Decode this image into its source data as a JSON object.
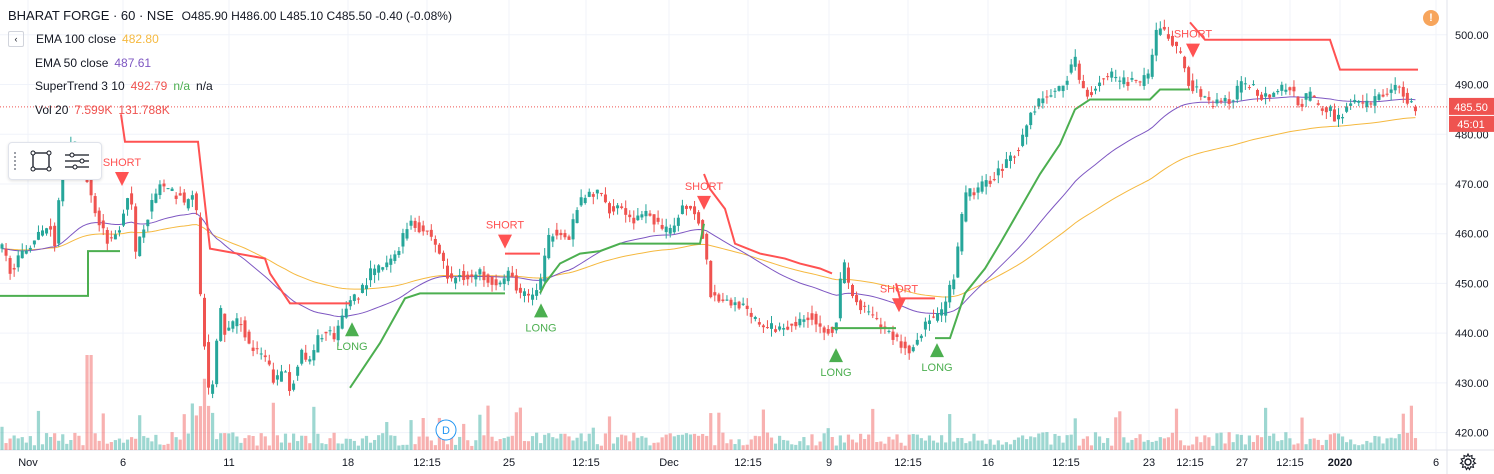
{
  "header": {
    "symbol_line": "BHARAT FORGE · 60 · NSE",
    "o_label": "O",
    "o_value": "485.90",
    "h_label": "H",
    "h_value": "486.00",
    "l_label": "L",
    "l_value": "485.10",
    "c_label": "C",
    "c_value": "485.50",
    "change": "-0.40 (-0.08%)",
    "collapse_glyph": "‹"
  },
  "indicators": [
    {
      "name": "EMA 100 close",
      "values": [
        "482.80"
      ],
      "color": "#f5b940"
    },
    {
      "name": "EMA 50 close",
      "values": [
        "487.61"
      ],
      "color": "#7e57c2"
    },
    {
      "name": "SuperTrend 3 10",
      "values": [
        "492.79",
        "n/a",
        "n/a"
      ],
      "color": "#ef5350"
    },
    {
      "name": "Vol 20",
      "values": [
        "7.599K",
        "131.788K"
      ],
      "color": "#ef5350"
    }
  ],
  "alert_glyph": "!",
  "colors": {
    "up": "#26a69a",
    "down": "#ef5350",
    "supertrend_up": "#4caf50",
    "supertrend_down": "#ff5252",
    "ema100": "#f5b940",
    "ema50": "#7e57c2",
    "grid": "#f0f3fa",
    "axis_text": "#131722",
    "price_tag": "#ef5350"
  },
  "chart_data": {
    "type": "candlestick",
    "x_tick_labels": [
      "Nov",
      "6",
      "11",
      "18",
      "12:15",
      "25",
      "12:15",
      "Dec",
      "12:15",
      "9",
      "12:15",
      "16",
      "12:15",
      "23",
      "12:15",
      "27",
      "12:15",
      "2020",
      "6"
    ],
    "y_ticks": [
      "420.00",
      "430.00",
      "440.00",
      "450.00",
      "460.00",
      "470.00",
      "480.00",
      "490.00",
      "500.00"
    ],
    "ylim": [
      416.5,
      507
    ],
    "last_price": "485.50",
    "countdown": "45:01",
    "scale_badge": "D",
    "anchors": [
      [
        0,
        458
      ],
      [
        10,
        453
      ],
      [
        20,
        455
      ],
      [
        30,
        458
      ],
      [
        40,
        460
      ],
      [
        50,
        462
      ],
      [
        55,
        458
      ],
      [
        60,
        470
      ],
      [
        70,
        478
      ],
      [
        80,
        477
      ],
      [
        85,
        472
      ],
      [
        90,
        468
      ],
      [
        100,
        462
      ],
      [
        110,
        458
      ],
      [
        120,
        462
      ],
      [
        130,
        470
      ],
      [
        135,
        455
      ],
      [
        140,
        460
      ],
      [
        150,
        465
      ],
      [
        160,
        470
      ],
      [
        170,
        468
      ],
      [
        180,
        468
      ],
      [
        185,
        465
      ],
      [
        195,
        470
      ],
      [
        200,
        448
      ],
      [
        210,
        425
      ],
      [
        220,
        445
      ],
      [
        225,
        440
      ],
      [
        240,
        443
      ],
      [
        250,
        437
      ],
      [
        265,
        435
      ],
      [
        275,
        430
      ],
      [
        285,
        433
      ],
      [
        290,
        428
      ],
      [
        300,
        436
      ],
      [
        310,
        434
      ],
      [
        320,
        440
      ],
      [
        330,
        440
      ],
      [
        335,
        438
      ],
      [
        340,
        442
      ],
      [
        350,
        447
      ],
      [
        360,
        448
      ],
      [
        370,
        452
      ],
      [
        380,
        453
      ],
      [
        390,
        454
      ],
      [
        400,
        458
      ],
      [
        410,
        463
      ],
      [
        420,
        461
      ],
      [
        430,
        460
      ],
      [
        440,
        456
      ],
      [
        450,
        450
      ],
      [
        460,
        452
      ],
      [
        470,
        451
      ],
      [
        480,
        452
      ],
      [
        490,
        451
      ],
      [
        500,
        450
      ],
      [
        510,
        452
      ],
      [
        520,
        448
      ],
      [
        530,
        447
      ],
      [
        540,
        450
      ],
      [
        550,
        460
      ],
      [
        560,
        461
      ],
      [
        570,
        458
      ],
      [
        575,
        465
      ],
      [
        590,
        468
      ],
      [
        600,
        468
      ],
      [
        610,
        465
      ],
      [
        620,
        466
      ],
      [
        630,
        463
      ],
      [
        640,
        463
      ],
      [
        650,
        464
      ],
      [
        660,
        461
      ],
      [
        670,
        460
      ],
      [
        680,
        465
      ],
      [
        690,
        466
      ],
      [
        700,
        462
      ],
      [
        705,
        458
      ],
      [
        710,
        448
      ],
      [
        720,
        447
      ],
      [
        730,
        446
      ],
      [
        740,
        446
      ],
      [
        750,
        443
      ],
      [
        760,
        442
      ],
      [
        770,
        441
      ],
      [
        780,
        441
      ],
      [
        790,
        442
      ],
      [
        800,
        442
      ],
      [
        810,
        444
      ],
      [
        820,
        441
      ],
      [
        830,
        441
      ],
      [
        835,
        440
      ],
      [
        840,
        450
      ],
      [
        845,
        454
      ],
      [
        850,
        448
      ],
      [
        860,
        445
      ],
      [
        870,
        444
      ],
      [
        880,
        441
      ],
      [
        890,
        440
      ],
      [
        900,
        438
      ],
      [
        910,
        436
      ],
      [
        920,
        440
      ],
      [
        930,
        443
      ],
      [
        940,
        443
      ],
      [
        950,
        449
      ],
      [
        955,
        452
      ],
      [
        965,
        468
      ],
      [
        980,
        469
      ],
      [
        990,
        471
      ],
      [
        1000,
        473
      ],
      [
        1010,
        475
      ],
      [
        1020,
        478
      ],
      [
        1030,
        484
      ],
      [
        1040,
        487
      ],
      [
        1050,
        488
      ],
      [
        1060,
        489
      ],
      [
        1070,
        493
      ],
      [
        1075,
        495
      ],
      [
        1080,
        490
      ],
      [
        1090,
        488
      ],
      [
        1100,
        491
      ],
      [
        1110,
        492
      ],
      [
        1120,
        490
      ],
      [
        1130,
        491
      ],
      [
        1140,
        490
      ],
      [
        1150,
        492
      ],
      [
        1155,
        500
      ],
      [
        1160,
        502
      ],
      [
        1170,
        499
      ],
      [
        1180,
        496
      ],
      [
        1190,
        490
      ],
      [
        1200,
        488
      ],
      [
        1210,
        486
      ],
      [
        1220,
        487
      ],
      [
        1230,
        486
      ],
      [
        1240,
        490
      ],
      [
        1250,
        490
      ],
      [
        1260,
        488
      ],
      [
        1270,
        488
      ],
      [
        1280,
        489
      ],
      [
        1290,
        489
      ],
      [
        1300,
        486
      ],
      [
        1310,
        488
      ],
      [
        1320,
        485
      ],
      [
        1330,
        485
      ],
      [
        1335,
        483
      ],
      [
        1340,
        484
      ],
      [
        1350,
        486
      ],
      [
        1360,
        486
      ],
      [
        1370,
        486
      ],
      [
        1380,
        488
      ],
      [
        1390,
        489
      ],
      [
        1400,
        489
      ],
      [
        1405,
        488
      ],
      [
        1410,
        486
      ],
      [
        1418,
        485.5
      ]
    ],
    "supertrend": [
      {
        "dir": "up",
        "points": [
          [
            0,
            447.5
          ],
          [
            88,
            447.5
          ],
          [
            88,
            456.5
          ],
          [
            120,
            456.5
          ]
        ]
      },
      {
        "dir": "down",
        "points": [
          [
            121,
            484
          ],
          [
            125,
            478.5
          ],
          [
            198,
            478.5
          ],
          [
            210,
            457
          ],
          [
            265,
            455
          ],
          [
            270,
            452
          ],
          [
            290,
            446
          ],
          [
            350,
            446
          ]
        ]
      },
      {
        "dir": "up",
        "points": [
          [
            350,
            429
          ],
          [
            360,
            432
          ],
          [
            380,
            438
          ],
          [
            405,
            447
          ],
          [
            420,
            448
          ],
          [
            440,
            448
          ],
          [
            505,
            448
          ]
        ]
      },
      {
        "dir": "down",
        "points": [
          [
            505,
            456
          ],
          [
            540,
            456
          ]
        ]
      },
      {
        "dir": "up",
        "points": [
          [
            540,
            448
          ],
          [
            545,
            450
          ],
          [
            560,
            454
          ],
          [
            580,
            456
          ],
          [
            600,
            456.5
          ],
          [
            620,
            458
          ],
          [
            640,
            458
          ],
          [
            660,
            458
          ],
          [
            700,
            458
          ],
          [
            704,
            462
          ]
        ]
      },
      {
        "dir": "down",
        "points": [
          [
            704,
            472
          ],
          [
            710,
            469
          ],
          [
            725,
            465
          ],
          [
            735,
            458
          ],
          [
            760,
            456
          ],
          [
            785,
            455
          ],
          [
            800,
            454
          ],
          [
            820,
            453
          ],
          [
            832,
            452
          ]
        ]
      },
      {
        "dir": "up",
        "points": [
          [
            832,
            441
          ],
          [
            840,
            441
          ],
          [
            896,
            441
          ]
        ]
      },
      {
        "dir": "down",
        "points": [
          [
            896,
            450
          ],
          [
            900,
            447
          ],
          [
            935,
            447
          ]
        ]
      },
      {
        "dir": "up",
        "points": [
          [
            935,
            439
          ],
          [
            950,
            439
          ],
          [
            965,
            448
          ],
          [
            985,
            453
          ],
          [
            1000,
            458
          ],
          [
            1020,
            465
          ],
          [
            1040,
            472
          ],
          [
            1060,
            478
          ],
          [
            1075,
            485
          ],
          [
            1090,
            487
          ],
          [
            1150,
            487
          ],
          [
            1160,
            489
          ],
          [
            1190,
            489
          ]
        ]
      },
      {
        "dir": "down",
        "points": [
          [
            1190,
            502.5
          ],
          [
            1205,
            499
          ],
          [
            1330,
            499
          ],
          [
            1340,
            493
          ],
          [
            1418,
            493
          ]
        ]
      }
    ],
    "signals": [
      {
        "type": "SHORT",
        "x": 122
      },
      {
        "type": "LONG",
        "x": 352
      },
      {
        "type": "SHORT",
        "x": 505
      },
      {
        "type": "LONG",
        "x": 541
      },
      {
        "type": "SHORT",
        "x": 704
      },
      {
        "type": "LONG",
        "x": 836
      },
      {
        "type": "SHORT",
        "x": 899
      },
      {
        "type": "LONG",
        "x": 937
      },
      {
        "type": "SHORT",
        "x": 1193
      }
    ],
    "long_label": "LONG",
    "short_label": "SHORT"
  }
}
